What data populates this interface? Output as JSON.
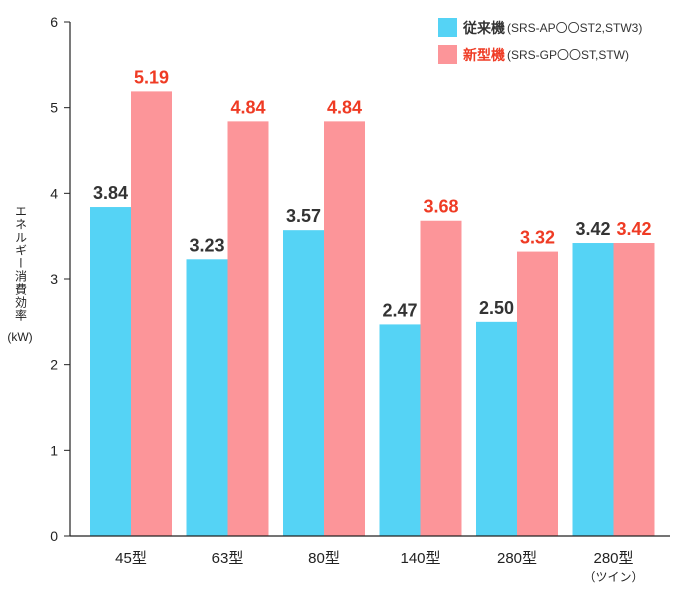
{
  "chart_data": {
    "type": "bar",
    "ylabel_main": "エネルギー消費効率",
    "ylabel_unit": "(kW)",
    "ylim": [
      0,
      6
    ],
    "yticks": [
      "0",
      "1",
      "2",
      "3",
      "4",
      "5",
      "6"
    ],
    "categories": [
      {
        "label": "45型",
        "sub": ""
      },
      {
        "label": "63型",
        "sub": ""
      },
      {
        "label": "80型",
        "sub": ""
      },
      {
        "label": "140型",
        "sub": ""
      },
      {
        "label": "280型",
        "sub": ""
      },
      {
        "label": "280型",
        "sub": "（ツイン）"
      }
    ],
    "series": [
      {
        "name": "従来機",
        "model": "(SRS-AP〇〇ST2,STW3)",
        "color": "#55d3f5",
        "label_color": "#333333",
        "values": [
          3.84,
          3.23,
          3.57,
          2.47,
          2.5,
          3.42
        ],
        "labels": [
          "3.84",
          "3.23",
          "3.57",
          "2.47",
          "2.50",
          "3.42"
        ]
      },
      {
        "name": "新型機",
        "model": "(SRS-GP〇〇ST,STW)",
        "color": "#fc9599",
        "label_color": "#ef3b24",
        "values": [
          5.19,
          4.84,
          4.84,
          3.68,
          3.32,
          3.42
        ],
        "labels": [
          "5.19",
          "4.84",
          "4.84",
          "3.68",
          "3.32",
          "3.42"
        ]
      }
    ],
    "grid": false,
    "legend_position": "top-right"
  }
}
